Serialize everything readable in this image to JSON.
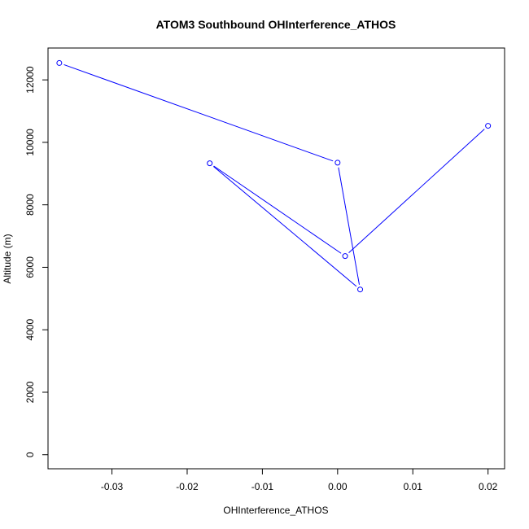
{
  "chart_data": {
    "type": "line",
    "title": "ATOM3 Southbound OHInterference_ATHOS",
    "xlabel": "OHInterference_ATHOS",
    "ylabel": "Altitude (m)",
    "xlim": [
      -0.0385,
      0.0222
    ],
    "ylim": [
      -450,
      13020
    ],
    "x_ticks": [
      -0.03,
      -0.02,
      -0.01,
      0.0,
      0.01,
      0.02
    ],
    "x_tick_labels": [
      "-0.03",
      "-0.02",
      "-0.01",
      "0.00",
      "0.01",
      "0.02"
    ],
    "y_ticks": [
      0,
      2000,
      4000,
      6000,
      8000,
      10000,
      12000
    ],
    "y_tick_labels": [
      "0",
      "2000",
      "4000",
      "6000",
      "8000",
      "10000",
      "12000"
    ],
    "marker": "open-circle",
    "grid": false,
    "series": [
      {
        "color": "#0000ff",
        "points": [
          {
            "x": 0.02,
            "y": 10530
          },
          {
            "x": 0.001,
            "y": 6360
          },
          {
            "x": -0.017,
            "y": 9330
          },
          {
            "x": 0.003,
            "y": 5290
          },
          {
            "x": 0.0,
            "y": 9350
          },
          {
            "x": -0.037,
            "y": 12540
          }
        ]
      }
    ]
  }
}
